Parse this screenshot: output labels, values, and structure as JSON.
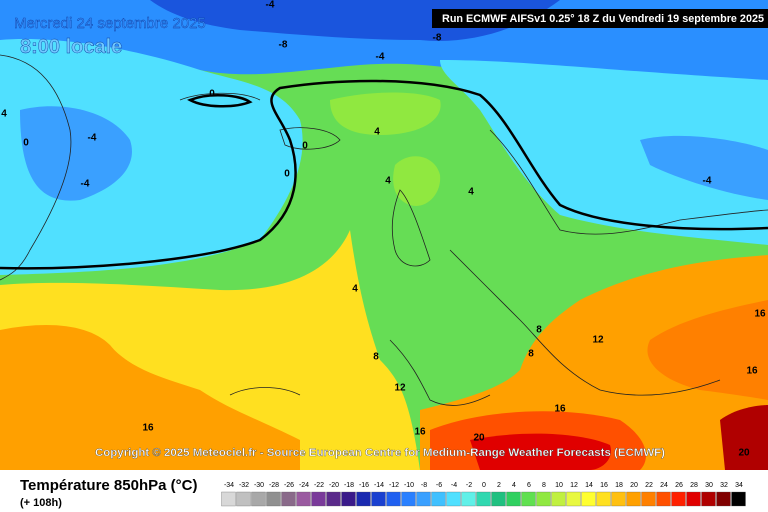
{
  "header": {
    "date": "Mercredi 24 septembre 2025",
    "time": "8:00 locale",
    "run": "Run ECMWF AIFSv1 0.25° 18 Z du Vendredi 19 septembre 2025"
  },
  "copyright": "Copyright © 2025 Meteociel.fr - Source European Centre for Medium-Range Weather Forecasts (ECMWF)",
  "footer": {
    "title": "Température 850hPa (°C)",
    "lead": "(+ 108h)"
  },
  "contour_labels": [
    -4,
    -8,
    -8,
    -4,
    0,
    0,
    -4,
    4,
    -4,
    0,
    0,
    4,
    4,
    4,
    -4,
    4,
    8,
    8,
    8,
    12,
    12,
    16,
    16,
    16,
    16,
    16,
    20,
    20
  ],
  "legend": {
    "labels": [
      -34,
      -32,
      -30,
      -28,
      -26,
      -24,
      -22,
      -20,
      -18,
      -16,
      -14,
      -12,
      -10,
      -8,
      -6,
      -4,
      -2,
      0,
      2,
      4,
      6,
      8,
      10,
      12,
      14,
      16,
      18,
      20,
      22,
      24,
      26,
      28,
      30,
      32,
      34
    ],
    "colors": [
      "#d8d8d8",
      "#c0c0c0",
      "#a8a8a8",
      "#909090",
      "#8a6a8a",
      "#9a5aa0",
      "#7a3a9a",
      "#5a2a8a",
      "#3a1a8a",
      "#1a2ab0",
      "#1a40d0",
      "#2060f0",
      "#2a80ff",
      "#3aa0ff",
      "#40c0ff",
      "#50e0ff",
      "#60f0e8",
      "#30d8b0",
      "#20c080",
      "#30d060",
      "#60e050",
      "#90e840",
      "#c0f040",
      "#e8f840",
      "#ffff30",
      "#ffe020",
      "#ffc010",
      "#ffa000",
      "#ff8000",
      "#ff5000",
      "#ff2000",
      "#e00000",
      "#b00000",
      "#800000",
      "#000000"
    ]
  }
}
